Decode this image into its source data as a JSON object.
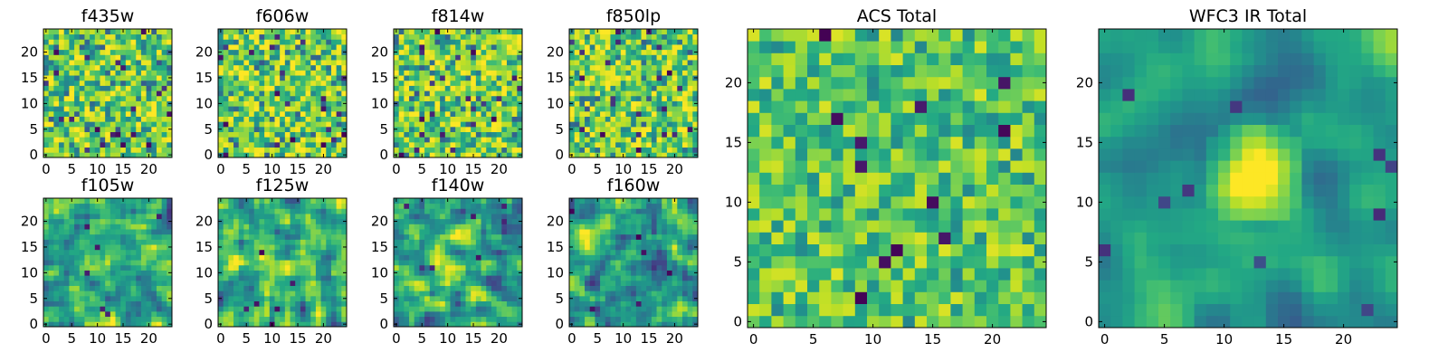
{
  "figure": {
    "background": "#ffffff",
    "colormap": "viridis"
  },
  "chart_data": [
    {
      "type": "heatmap",
      "title": "f435w",
      "grid_size": 25,
      "xlim": [
        0,
        24
      ],
      "ylim": [
        0,
        24
      ],
      "xticks": [
        0,
        5,
        10,
        15,
        20
      ],
      "yticks": [
        0,
        5,
        10,
        15,
        20
      ],
      "texture": "noisy",
      "seed": 11
    },
    {
      "type": "heatmap",
      "title": "f606w",
      "grid_size": 25,
      "xlim": [
        0,
        24
      ],
      "ylim": [
        0,
        24
      ],
      "xticks": [
        0,
        5,
        10,
        15,
        20
      ],
      "yticks": [
        0,
        5,
        10,
        15,
        20
      ],
      "texture": "noisy",
      "seed": 23
    },
    {
      "type": "heatmap",
      "title": "f814w",
      "grid_size": 25,
      "xlim": [
        0,
        24
      ],
      "ylim": [
        0,
        24
      ],
      "xticks": [
        0,
        5,
        10,
        15,
        20
      ],
      "yticks": [
        0,
        5,
        10,
        15,
        20
      ],
      "texture": "noisy",
      "seed": 37
    },
    {
      "type": "heatmap",
      "title": "f850lp",
      "grid_size": 25,
      "xlim": [
        0,
        24
      ],
      "ylim": [
        0,
        24
      ],
      "xticks": [
        0,
        5,
        10,
        15,
        20
      ],
      "yticks": [
        0,
        5,
        10,
        15,
        20
      ],
      "texture": "noisy",
      "seed": 41
    },
    {
      "type": "heatmap",
      "title": "f105w",
      "grid_size": 25,
      "xlim": [
        0,
        24
      ],
      "ylim": [
        0,
        24
      ],
      "xticks": [
        0,
        5,
        10,
        15,
        20
      ],
      "yticks": [
        0,
        5,
        10,
        15,
        20
      ],
      "texture": "smooth",
      "seed": 53
    },
    {
      "type": "heatmap",
      "title": "f125w",
      "grid_size": 25,
      "xlim": [
        0,
        24
      ],
      "ylim": [
        0,
        24
      ],
      "xticks": [
        0,
        5,
        10,
        15,
        20
      ],
      "yticks": [
        0,
        5,
        10,
        15,
        20
      ],
      "texture": "smooth",
      "seed": 67
    },
    {
      "type": "heatmap",
      "title": "f140w",
      "grid_size": 25,
      "xlim": [
        0,
        24
      ],
      "ylim": [
        0,
        24
      ],
      "xticks": [
        0,
        5,
        10,
        15,
        20
      ],
      "yticks": [
        0,
        5,
        10,
        15,
        20
      ],
      "texture": "smooth",
      "seed": 71
    },
    {
      "type": "heatmap",
      "title": "f160w",
      "grid_size": 25,
      "xlim": [
        0,
        24
      ],
      "ylim": [
        0,
        24
      ],
      "xticks": [
        0,
        5,
        10,
        15,
        20
      ],
      "yticks": [
        0,
        5,
        10,
        15,
        20
      ],
      "texture": "smooth",
      "seed": 83
    },
    {
      "type": "heatmap",
      "title": "ACS Total",
      "grid_size": 25,
      "xlim": [
        0,
        24
      ],
      "ylim": [
        0,
        24
      ],
      "xticks": [
        0,
        5,
        10,
        15,
        20
      ],
      "yticks": [
        0,
        5,
        10,
        15,
        20
      ],
      "texture": "acs",
      "seed": 97
    },
    {
      "type": "heatmap",
      "title": "WFC3 IR Total",
      "grid_size": 25,
      "xlim": [
        0,
        24
      ],
      "ylim": [
        0,
        24
      ],
      "xticks": [
        0,
        5,
        10,
        15,
        20
      ],
      "yticks": [
        0,
        5,
        10,
        15,
        20
      ],
      "texture": "wfc3",
      "seed": 101
    }
  ]
}
